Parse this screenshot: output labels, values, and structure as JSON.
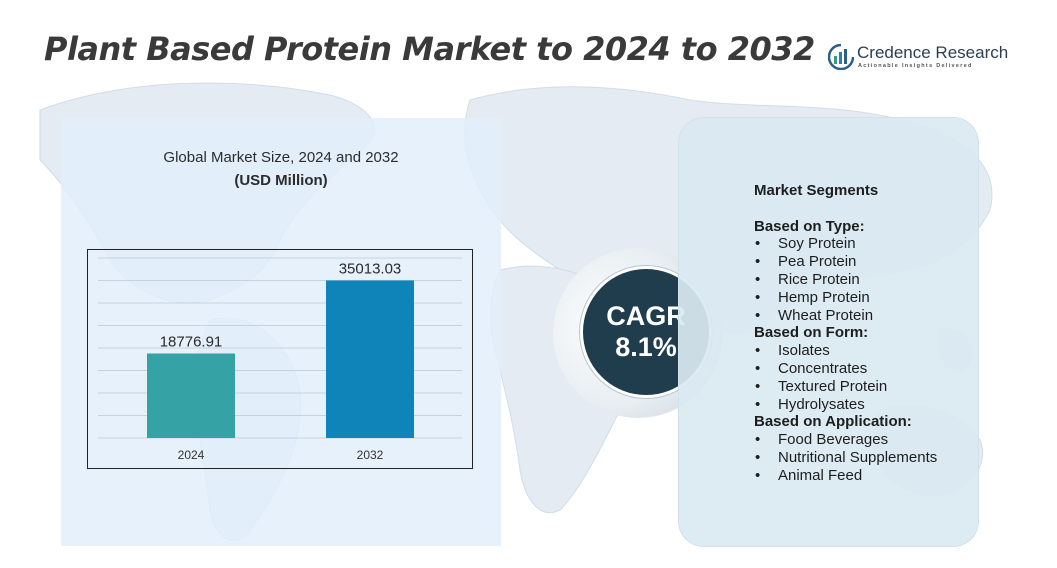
{
  "title": "Plant Based Protein Market to 2024 to 2032",
  "logo": {
    "name": "Credence Research",
    "tagline": "Actionable Insights Delivered"
  },
  "chart_title_line1": "Global Market Size, 2024 and 2032",
  "chart_title_line2": "(USD Million)",
  "chart_data": {
    "type": "bar",
    "title": "Global Market Size, 2024 and 2032",
    "ylabel": "(USD Million)",
    "categories": [
      "2024",
      "2032"
    ],
    "values": [
      18776.91,
      35013.03
    ],
    "value_labels": [
      "18776.91",
      "35013.03"
    ],
    "ylim": [
      0,
      40000
    ],
    "grid": true,
    "colors": [
      "#35a3a5",
      "#0e84b8"
    ]
  },
  "cagr": {
    "label": "CAGR",
    "value": "8.1%"
  },
  "segments": {
    "title": "Market Segments",
    "groups": [
      {
        "title": "Based on Type:",
        "items": [
          "Soy Protein",
          "Pea Protein",
          "Rice Protein",
          "Hemp Protein",
          "Wheat Protein"
        ]
      },
      {
        "title": "Based on Form:",
        "items": [
          "Isolates",
          "Concentrates",
          "Textured Protein",
          "Hydrolysates"
        ]
      },
      {
        "title": "Based on Application:",
        "items": [
          "Food Beverages",
          "Nutritional Supplements",
          "Animal Feed"
        ]
      }
    ]
  },
  "colors": {
    "title": "#3a3a3a",
    "panel_left": "#e2eefa",
    "panel_right": "#dae9f2",
    "cagr_circle": "#1f3d4d",
    "map": "#dde6ee"
  }
}
